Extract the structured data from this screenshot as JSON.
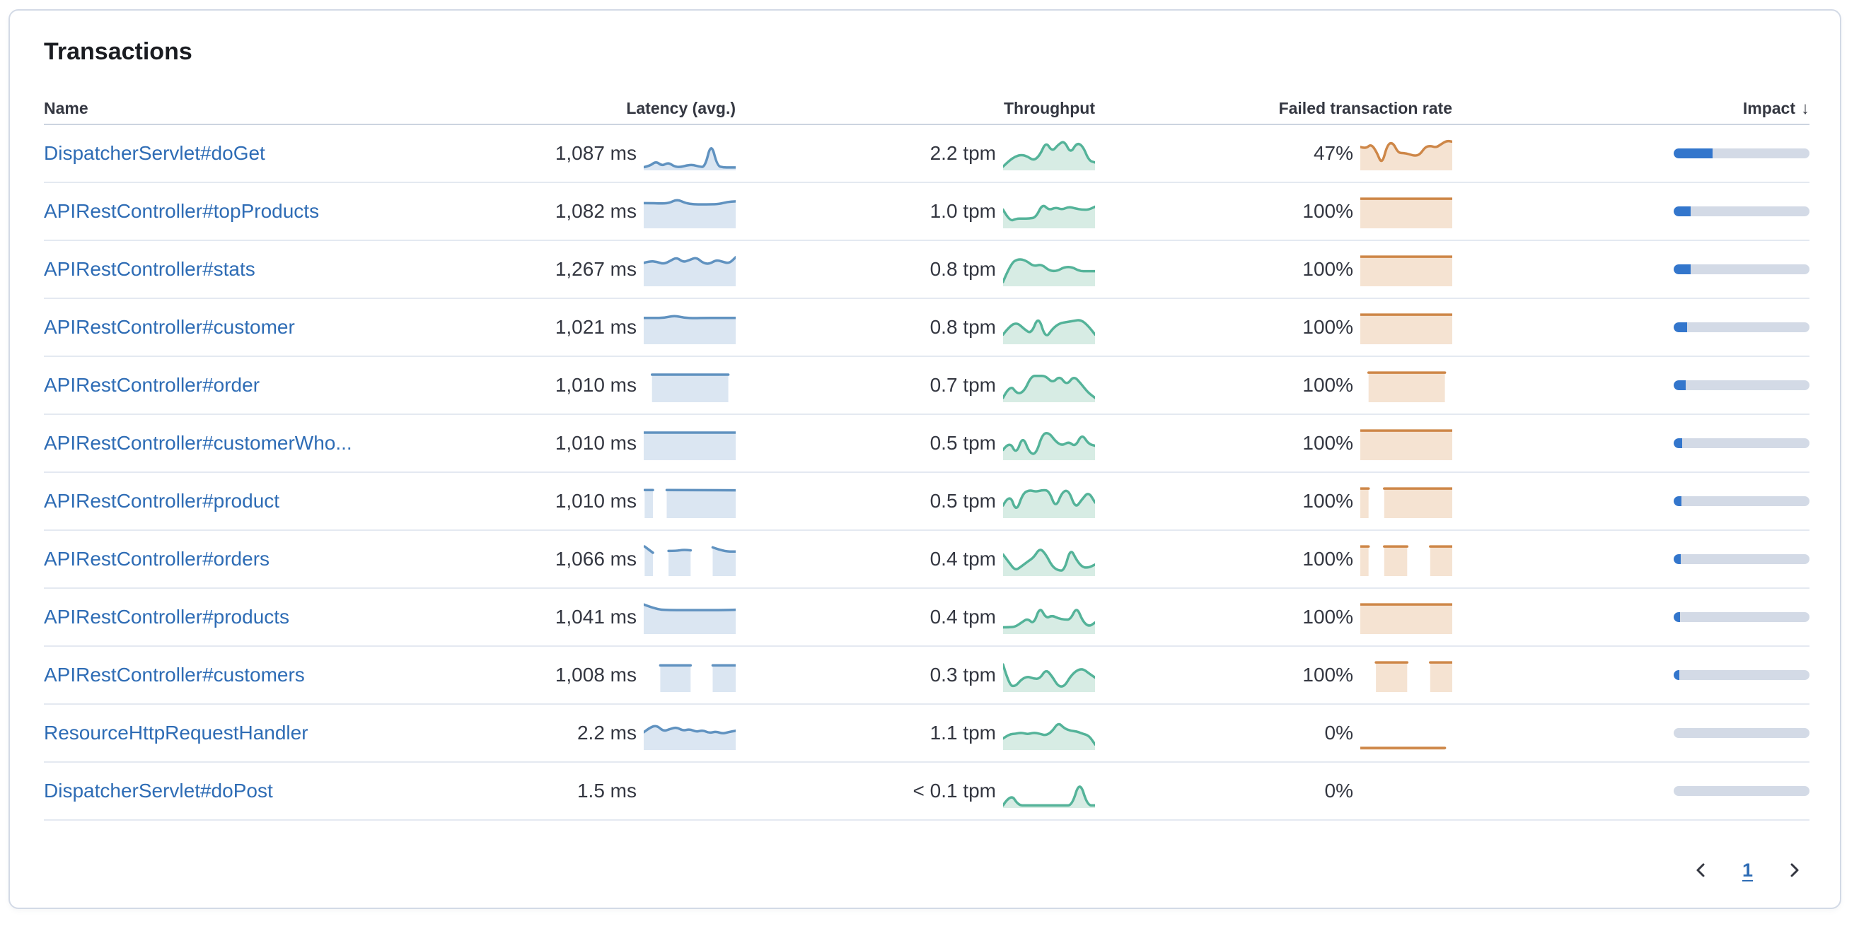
{
  "panel": {
    "title": "Transactions"
  },
  "table": {
    "columns": [
      {
        "label": "Name"
      },
      {
        "label": "Latency (avg.)"
      },
      {
        "label": "Throughput"
      },
      {
        "label": "Failed transaction rate"
      },
      {
        "label": "Impact",
        "sorted": "desc"
      }
    ],
    "sort_icon_glyph": "↓",
    "rows": [
      {
        "name": "DispatcherServlet#doGet",
        "latency": "1,087 ms",
        "throughput": "2.2 tpm",
        "failed_rate": "47%",
        "impact_pct": 28.5,
        "latency_spark": [
          {
            "x0": 0,
            "x1": 1,
            "y": [
              0.06,
              0.1,
              0.26,
              0.1,
              0.22,
              0.08,
              0.06,
              0.12,
              0.14,
              0.08,
              0.06,
              0.9,
              0.1,
              0.05,
              0.05,
              0.05
            ]
          }
        ],
        "throughput_spark": [
          {
            "x0": 0,
            "x1": 1,
            "y": [
              0.08,
              0.28,
              0.42,
              0.48,
              0.42,
              0.28,
              0.46,
              0.92,
              0.58,
              0.82,
              0.95,
              0.52,
              0.88,
              0.78,
              0.28,
              0.22
            ]
          }
        ],
        "failed_spark": [
          {
            "x0": 0,
            "x1": 1,
            "y": [
              0.74,
              0.68,
              0.84,
              0.58,
              0.14,
              0.82,
              0.9,
              0.54,
              0.54,
              0.5,
              0.44,
              0.48,
              0.74,
              0.78,
              0.72,
              0.84,
              0.95,
              0.92
            ]
          }
        ]
      },
      {
        "name": "APIRestController#topProducts",
        "latency": "1,082 ms",
        "throughput": "1.0 tpm",
        "failed_rate": "100%",
        "impact_pct": 12.5,
        "latency_spark": [
          {
            "x0": 0,
            "x1": 1,
            "y": [
              0.8,
              0.8,
              0.79,
              0.8,
              0.93,
              0.8,
              0.76,
              0.76,
              0.76,
              0.77,
              0.84,
              0.86
            ]
          }
        ],
        "throughput_spark": [
          {
            "x0": 0,
            "x1": 1,
            "y": [
              0.58,
              0.18,
              0.28,
              0.28,
              0.28,
              0.32,
              0.78,
              0.56,
              0.66,
              0.58,
              0.68,
              0.62,
              0.58,
              0.58,
              0.68
            ]
          }
        ],
        "failed_spark": [
          {
            "x0": 0,
            "x1": 1,
            "y": [
              0.95,
              0.95
            ]
          }
        ]
      },
      {
        "name": "APIRestController#stats",
        "latency": "1,267 ms",
        "throughput": "0.8 tpm",
        "failed_rate": "100%",
        "impact_pct": 12.5,
        "latency_spark": [
          {
            "x0": 0,
            "x1": 1,
            "y": [
              0.74,
              0.8,
              0.78,
              0.7,
              0.8,
              0.93,
              0.76,
              0.84,
              0.93,
              0.74,
              0.7,
              0.84,
              0.78,
              0.72,
              0.93
            ]
          }
        ],
        "throughput_spark": [
          {
            "x0": 0,
            "x1": 1,
            "y": [
              0.1,
              0.72,
              0.88,
              0.82,
              0.62,
              0.7,
              0.48,
              0.46,
              0.6,
              0.6,
              0.46,
              0.46,
              0.46
            ]
          }
        ],
        "failed_spark": [
          {
            "x0": 0,
            "x1": 1,
            "y": [
              0.95,
              0.95
            ]
          }
        ]
      },
      {
        "name": "APIRestController#customer",
        "latency": "1,021 ms",
        "throughput": "0.8 tpm",
        "failed_rate": "100%",
        "impact_pct": 10,
        "latency_spark": [
          {
            "x0": 0,
            "x1": 1,
            "y": [
              0.84,
              0.84,
              0.84,
              0.92,
              0.84,
              0.83,
              0.84,
              0.84,
              0.84,
              0.84
            ]
          }
        ],
        "throughput_spark": [
          {
            "x0": 0,
            "x1": 1,
            "y": [
              0.28,
              0.58,
              0.68,
              0.46,
              0.3,
              0.92,
              0.14,
              0.48,
              0.66,
              0.7,
              0.74,
              0.78,
              0.58,
              0.28
            ]
          }
        ],
        "failed_spark": [
          {
            "x0": 0,
            "x1": 1,
            "y": [
              0.95,
              0.95
            ]
          }
        ]
      },
      {
        "name": "APIRestController#order",
        "latency": "1,010 ms",
        "throughput": "0.7 tpm",
        "failed_rate": "100%",
        "impact_pct": 8.8,
        "latency_spark": [
          {
            "x0": 0.09,
            "x1": 0.92,
            "y": [
              0.88,
              0.88
            ]
          }
        ],
        "throughput_spark": [
          {
            "x0": 0,
            "x1": 1,
            "y": [
              0.1,
              0.56,
              0.22,
              0.32,
              0.84,
              0.84,
              0.84,
              0.6,
              0.84,
              0.52,
              0.84,
              0.58,
              0.28,
              0.1
            ]
          }
        ],
        "failed_spark": [
          {
            "x0": 0.09,
            "x1": 0.92,
            "y": [
              0.95,
              0.95
            ]
          }
        ]
      },
      {
        "name": "APIRestController#customerWho...",
        "latency": "1,010 ms",
        "throughput": "0.5 tpm",
        "failed_rate": "100%",
        "impact_pct": 6.4,
        "latency_spark": [
          {
            "x0": 0,
            "x1": 1,
            "y": [
              0.88,
              0.88
            ]
          }
        ],
        "throughput_spark": [
          {
            "x0": 0,
            "x1": 1,
            "y": [
              0.3,
              0.6,
              0.14,
              0.78,
              0.2,
              0.14,
              0.84,
              0.88,
              0.58,
              0.44,
              0.58,
              0.4,
              0.84,
              0.5,
              0.44
            ]
          }
        ],
        "failed_spark": [
          {
            "x0": 0,
            "x1": 1,
            "y": [
              0.95,
              0.95
            ]
          }
        ]
      },
      {
        "name": "APIRestController#product",
        "latency": "1,010 ms",
        "throughput": "0.5 tpm",
        "failed_rate": "100%",
        "impact_pct": 5.8,
        "latency_spark": [
          {
            "x0": 0.01,
            "x1": 0.1,
            "y": [
              0.9,
              0.9
            ]
          },
          {
            "x0": 0.25,
            "x1": 1,
            "y": [
              0.9,
              0.89
            ]
          }
        ],
        "throughput_spark": [
          {
            "x0": 0,
            "x1": 1,
            "y": [
              0.38,
              0.8,
              0.14,
              0.78,
              0.9,
              0.84,
              0.9,
              0.88,
              0.28,
              0.84,
              0.9,
              0.28,
              0.58,
              0.84,
              0.48
            ]
          }
        ],
        "failed_spark": [
          {
            "x0": 0,
            "x1": 0.09,
            "y": [
              0.95,
              0.95
            ]
          },
          {
            "x0": 0.26,
            "x1": 1,
            "y": [
              0.95,
              0.95
            ]
          }
        ]
      },
      {
        "name": "APIRestController#orders",
        "latency": "1,066 ms",
        "throughput": "0.4 tpm",
        "failed_rate": "100%",
        "impact_pct": 5.2,
        "latency_spark": [
          {
            "x0": 0.01,
            "x1": 0.1,
            "y": [
              0.95,
              0.74
            ]
          },
          {
            "x0": 0.27,
            "x1": 0.51,
            "y": [
              0.8,
              0.8,
              0.84,
              0.82
            ]
          },
          {
            "x0": 0.75,
            "x1": 1,
            "y": [
              0.92,
              0.78,
              0.78
            ]
          }
        ],
        "throughput_spark": [
          {
            "x0": 0,
            "x1": 1,
            "y": [
              0.68,
              0.4,
              0.14,
              0.28,
              0.44,
              0.58,
              0.9,
              0.68,
              0.28,
              0.14,
              0.14,
              0.9,
              0.48,
              0.24,
              0.24,
              0.34
            ]
          }
        ],
        "failed_spark": [
          {
            "x0": 0,
            "x1": 0.09,
            "y": [
              0.95,
              0.95
            ]
          },
          {
            "x0": 0.26,
            "x1": 0.51,
            "y": [
              0.95,
              0.95
            ]
          },
          {
            "x0": 0.76,
            "x1": 1,
            "y": [
              0.95,
              0.95
            ]
          }
        ]
      },
      {
        "name": "APIRestController#products",
        "latency": "1,041 ms",
        "throughput": "0.4 tpm",
        "failed_rate": "100%",
        "impact_pct": 4.8,
        "latency_spark": [
          {
            "x0": 0,
            "x1": 1,
            "y": [
              0.95,
              0.78,
              0.76,
              0.76,
              0.76,
              0.76,
              0.76,
              0.77
            ]
          }
        ],
        "throughput_spark": [
          {
            "x0": 0,
            "x1": 1,
            "y": [
              0.18,
              0.18,
              0.2,
              0.34,
              0.48,
              0.28,
              0.88,
              0.48,
              0.58,
              0.48,
              0.44,
              0.44,
              0.88,
              0.38,
              0.2,
              0.34
            ]
          }
        ],
        "failed_spark": [
          {
            "x0": 0,
            "x1": 1,
            "y": [
              0.95,
              0.95
            ]
          }
        ]
      },
      {
        "name": "APIRestController#customers",
        "latency": "1,008 ms",
        "throughput": "0.3 tpm",
        "failed_rate": "100%",
        "impact_pct": 4.2,
        "latency_spark": [
          {
            "x0": 0.18,
            "x1": 0.51,
            "y": [
              0.85,
              0.85
            ]
          },
          {
            "x0": 0.75,
            "x1": 1,
            "y": [
              0.85,
              0.85
            ]
          }
        ],
        "throughput_spark": [
          {
            "x0": 0,
            "x1": 1,
            "y": [
              0.88,
              0.18,
              0.14,
              0.38,
              0.48,
              0.4,
              0.4,
              0.72,
              0.48,
              0.14,
              0.14,
              0.48,
              0.68,
              0.74,
              0.58,
              0.44
            ]
          }
        ],
        "failed_spark": [
          {
            "x0": 0.17,
            "x1": 0.51,
            "y": [
              0.95,
              0.95
            ]
          },
          {
            "x0": 0.76,
            "x1": 1,
            "y": [
              0.95,
              0.95
            ]
          }
        ]
      },
      {
        "name": "ResourceHttpRequestHandler",
        "latency": "2.2 ms",
        "throughput": "1.1 tpm",
        "failed_rate": "0%",
        "impact_pct": 0,
        "latency_spark": [
          {
            "x0": 0,
            "x1": 1,
            "y": [
              0.55,
              0.72,
              0.78,
              0.58,
              0.66,
              0.72,
              0.6,
              0.66,
              0.56,
              0.62,
              0.52,
              0.58,
              0.5,
              0.56,
              0.6
            ]
          }
        ],
        "throughput_spark": [
          {
            "x0": 0,
            "x1": 1,
            "y": [
              0.34,
              0.48,
              0.5,
              0.54,
              0.48,
              0.54,
              0.5,
              0.44,
              0.58,
              0.88,
              0.68,
              0.6,
              0.58,
              0.5,
              0.44,
              0.14
            ]
          }
        ],
        "failed_spark": [
          {
            "x0": 0,
            "x1": 0.92,
            "y": [
              0.02,
              0.02
            ]
          }
        ]
      },
      {
        "name": "DispatcherServlet#doPost",
        "latency": "1.5 ms",
        "throughput": "< 0.1 tpm",
        "failed_rate": "0%",
        "impact_pct": 0,
        "latency_spark": [],
        "throughput_spark": [
          {
            "x0": 0,
            "x1": 1,
            "y": [
              0.04,
              0.44,
              0.04,
              0.04,
              0.04,
              0.04,
              0.04,
              0.04,
              0.04,
              0.04,
              0.88,
              0.04,
              0.04
            ]
          }
        ],
        "failed_spark": []
      }
    ]
  },
  "pagination": {
    "current_page": "1"
  },
  "colors": {
    "link": "#2e6cb5",
    "latency_line": "#6092c0",
    "latency_fill": "#dbe6f2",
    "throughput_line": "#54b399",
    "throughput_fill": "#d7ece4",
    "failed_line": "#ce8748",
    "failed_fill": "#f5e3d2",
    "impact_fill": "#3376cc",
    "impact_track": "#d3dae6"
  }
}
